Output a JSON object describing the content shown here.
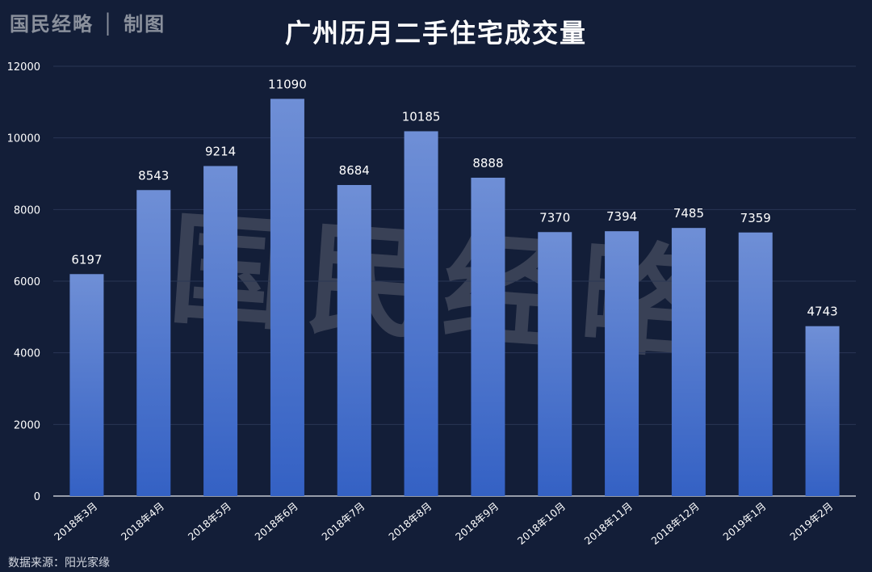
{
  "header": {
    "brand": "国民经略 │ 制图",
    "title": "广州历月二手住宅成交量"
  },
  "watermark": "国民经略",
  "footer": {
    "source": "数据来源：阳光家缘"
  },
  "colors": {
    "background": "#131e38",
    "bar_top": "#6f8fd6",
    "bar_bottom": "#3461c4",
    "grid": "#2a3654",
    "text": "#ffffff"
  },
  "chart_data": {
    "type": "bar",
    "title": "广州历月二手住宅成交量",
    "xlabel": "",
    "ylabel": "",
    "categories": [
      "2018年3月",
      "2018年4月",
      "2018年5月",
      "2018年6月",
      "2018年7月",
      "2018年8月",
      "2018年9月",
      "2018年10月",
      "2018年11月",
      "2018年12月",
      "2019年1月",
      "2019年2月"
    ],
    "values": [
      6197,
      8543,
      9214,
      11090,
      8684,
      10185,
      8888,
      7370,
      7394,
      7485,
      7359,
      4743
    ],
    "ylim": [
      0,
      12000
    ],
    "yticks": [
      0,
      2000,
      4000,
      6000,
      8000,
      10000,
      12000
    ],
    "grid": true,
    "data_labels": true,
    "legend": "none"
  }
}
